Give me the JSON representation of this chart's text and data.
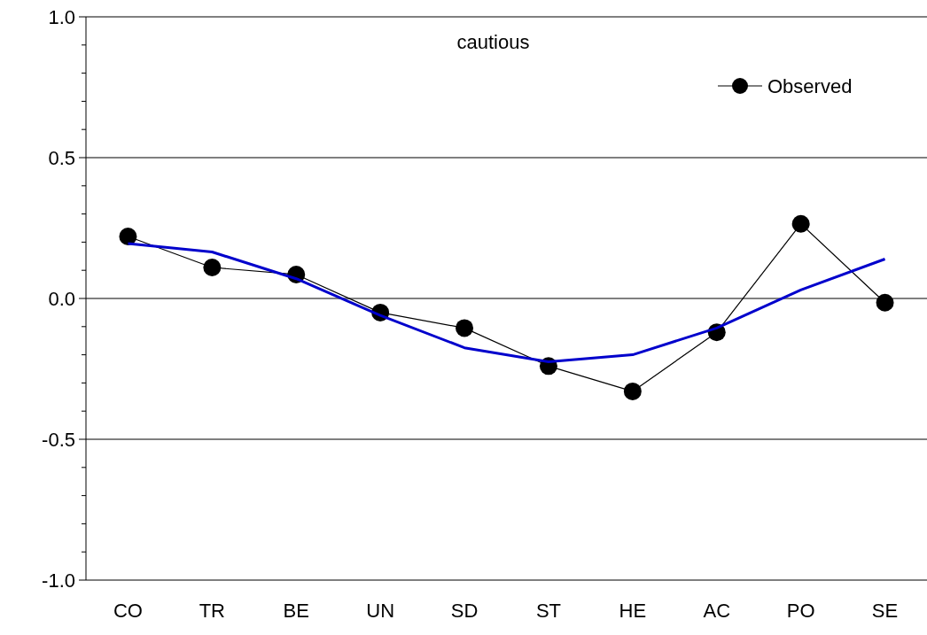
{
  "chart_data": {
    "type": "line",
    "title": "cautious",
    "categories": [
      "CO",
      "TR",
      "BE",
      "UN",
      "SD",
      "ST",
      "HE",
      "AC",
      "PO",
      "SE"
    ],
    "series": [
      {
        "name": "Observed",
        "color": "#000000",
        "marker": "circle",
        "values": [
          0.22,
          0.11,
          0.085,
          -0.05,
          -0.105,
          -0.24,
          -0.33,
          -0.12,
          0.265,
          -0.015
        ]
      },
      {
        "color": "#0000cc",
        "marker": "none",
        "values": [
          0.195,
          0.165,
          0.07,
          -0.06,
          -0.175,
          -0.225,
          -0.2,
          -0.105,
          0.03,
          0.14
        ]
      }
    ],
    "ylim": [
      -1,
      1
    ],
    "yticks": [
      {
        "value": -1,
        "label": "-1.0"
      },
      {
        "value": -0.9,
        "label": null
      },
      {
        "value": -0.8,
        "label": null
      },
      {
        "value": -0.7,
        "label": null
      },
      {
        "value": -0.6,
        "label": null
      },
      {
        "value": -0.5,
        "label": "-0.5"
      },
      {
        "value": -0.4,
        "label": null
      },
      {
        "value": -0.3,
        "label": null
      },
      {
        "value": -0.2,
        "label": null
      },
      {
        "value": -0.1,
        "label": null
      },
      {
        "value": 0,
        "label": "0.0"
      },
      {
        "value": 0.1,
        "label": null
      },
      {
        "value": 0.2,
        "label": null
      },
      {
        "value": 0.3,
        "label": null
      },
      {
        "value": 0.4,
        "label": null
      },
      {
        "value": 0.5,
        "label": "0.5"
      },
      {
        "value": 0.6,
        "label": null
      },
      {
        "value": 0.7,
        "label": null
      },
      {
        "value": 0.8,
        "label": null
      },
      {
        "value": 0.9,
        "label": null
      },
      {
        "value": 1,
        "label": "1.0"
      }
    ],
    "grid": "y",
    "legend": "top right"
  }
}
